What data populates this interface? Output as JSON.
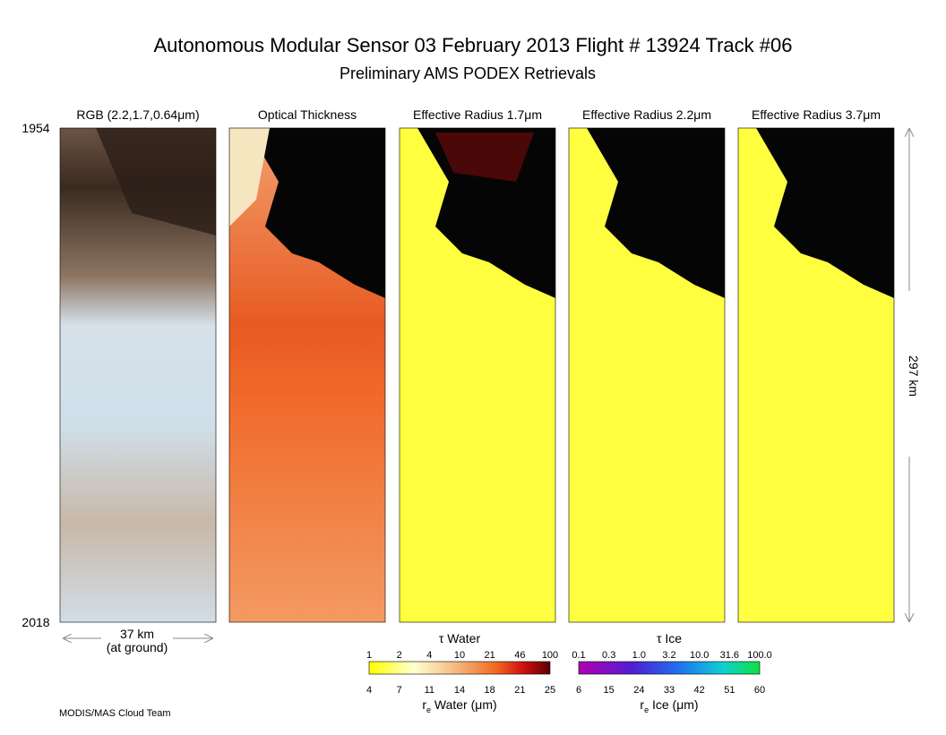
{
  "header": {
    "title": "Autonomous Modular Sensor  03 February 2013  Flight # 13924 Track #06",
    "subtitle": "Preliminary AMS PODEX Retrievals"
  },
  "panels": [
    {
      "title": "RGB (2.2,1.7,0.64μm)"
    },
    {
      "title": "Optical Thickness"
    },
    {
      "title": "Effective Radius 1.7μm"
    },
    {
      "title": "Effective Radius 2.2μm"
    },
    {
      "title": "Effective Radius 3.7μm"
    }
  ],
  "time_start": "1954",
  "time_end": "2018",
  "swath_width": "37 km",
  "swath_note": "(at ground)",
  "track_length": "297 km",
  "colorbars": [
    {
      "title": "τ Water",
      "top_ticks": [
        "1",
        "2",
        "4",
        "10",
        "21",
        "46",
        "100"
      ],
      "bottom_ticks": [
        "4",
        "7",
        "11",
        "14",
        "18",
        "21",
        "25"
      ],
      "bottom_symbol": "r",
      "bottom_subscript": "e",
      "bottom_title": " Water (μm)"
    },
    {
      "title": "τ Ice",
      "top_ticks": [
        "0.1",
        "0.3",
        "1.0",
        "3.2",
        "10.0",
        "31.6",
        "100.0"
      ],
      "bottom_ticks": [
        "6",
        "15",
        "24",
        "33",
        "42",
        "51",
        "60"
      ],
      "bottom_symbol": "r",
      "bottom_subscript": "e",
      "bottom_title": " Ice (μm)"
    }
  ],
  "footer": "MODIS/MAS Cloud Team"
}
